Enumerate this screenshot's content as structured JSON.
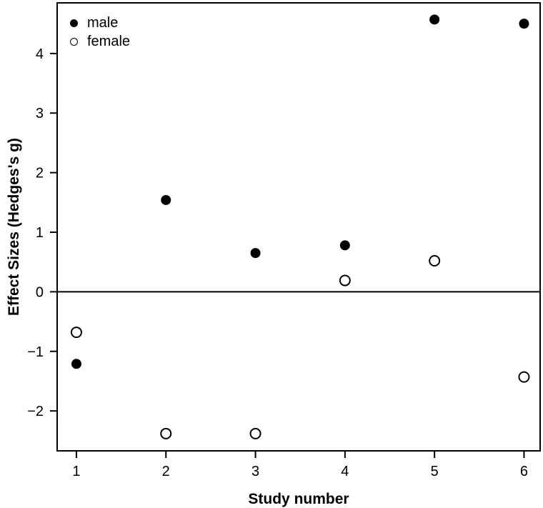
{
  "chart_data": {
    "type": "scatter",
    "title": "",
    "xlabel": "Study number",
    "ylabel": "Effect Sizes (Hedges's g)",
    "x": [
      1,
      2,
      3,
      4,
      5,
      6
    ],
    "series": [
      {
        "name": "male",
        "marker": "filled-circle",
        "values": [
          -1.21,
          1.54,
          0.65,
          0.78,
          4.57,
          4.5
        ]
      },
      {
        "name": "female",
        "marker": "open-circle",
        "values": [
          -0.68,
          -2.38,
          -2.38,
          0.19,
          0.52,
          -1.43
        ]
      }
    ],
    "xticks": [
      1,
      2,
      3,
      4,
      5,
      6
    ],
    "yticks": [
      -2,
      -1,
      0,
      1,
      2,
      3,
      4
    ],
    "xlim": [
      0.785,
      6.18
    ],
    "ylim": [
      -2.67,
      4.85
    ],
    "reference_line_y": 0,
    "legend_position": "top-left",
    "grid": false,
    "colors": {
      "foreground": "#000000",
      "background": "#ffffff"
    }
  }
}
